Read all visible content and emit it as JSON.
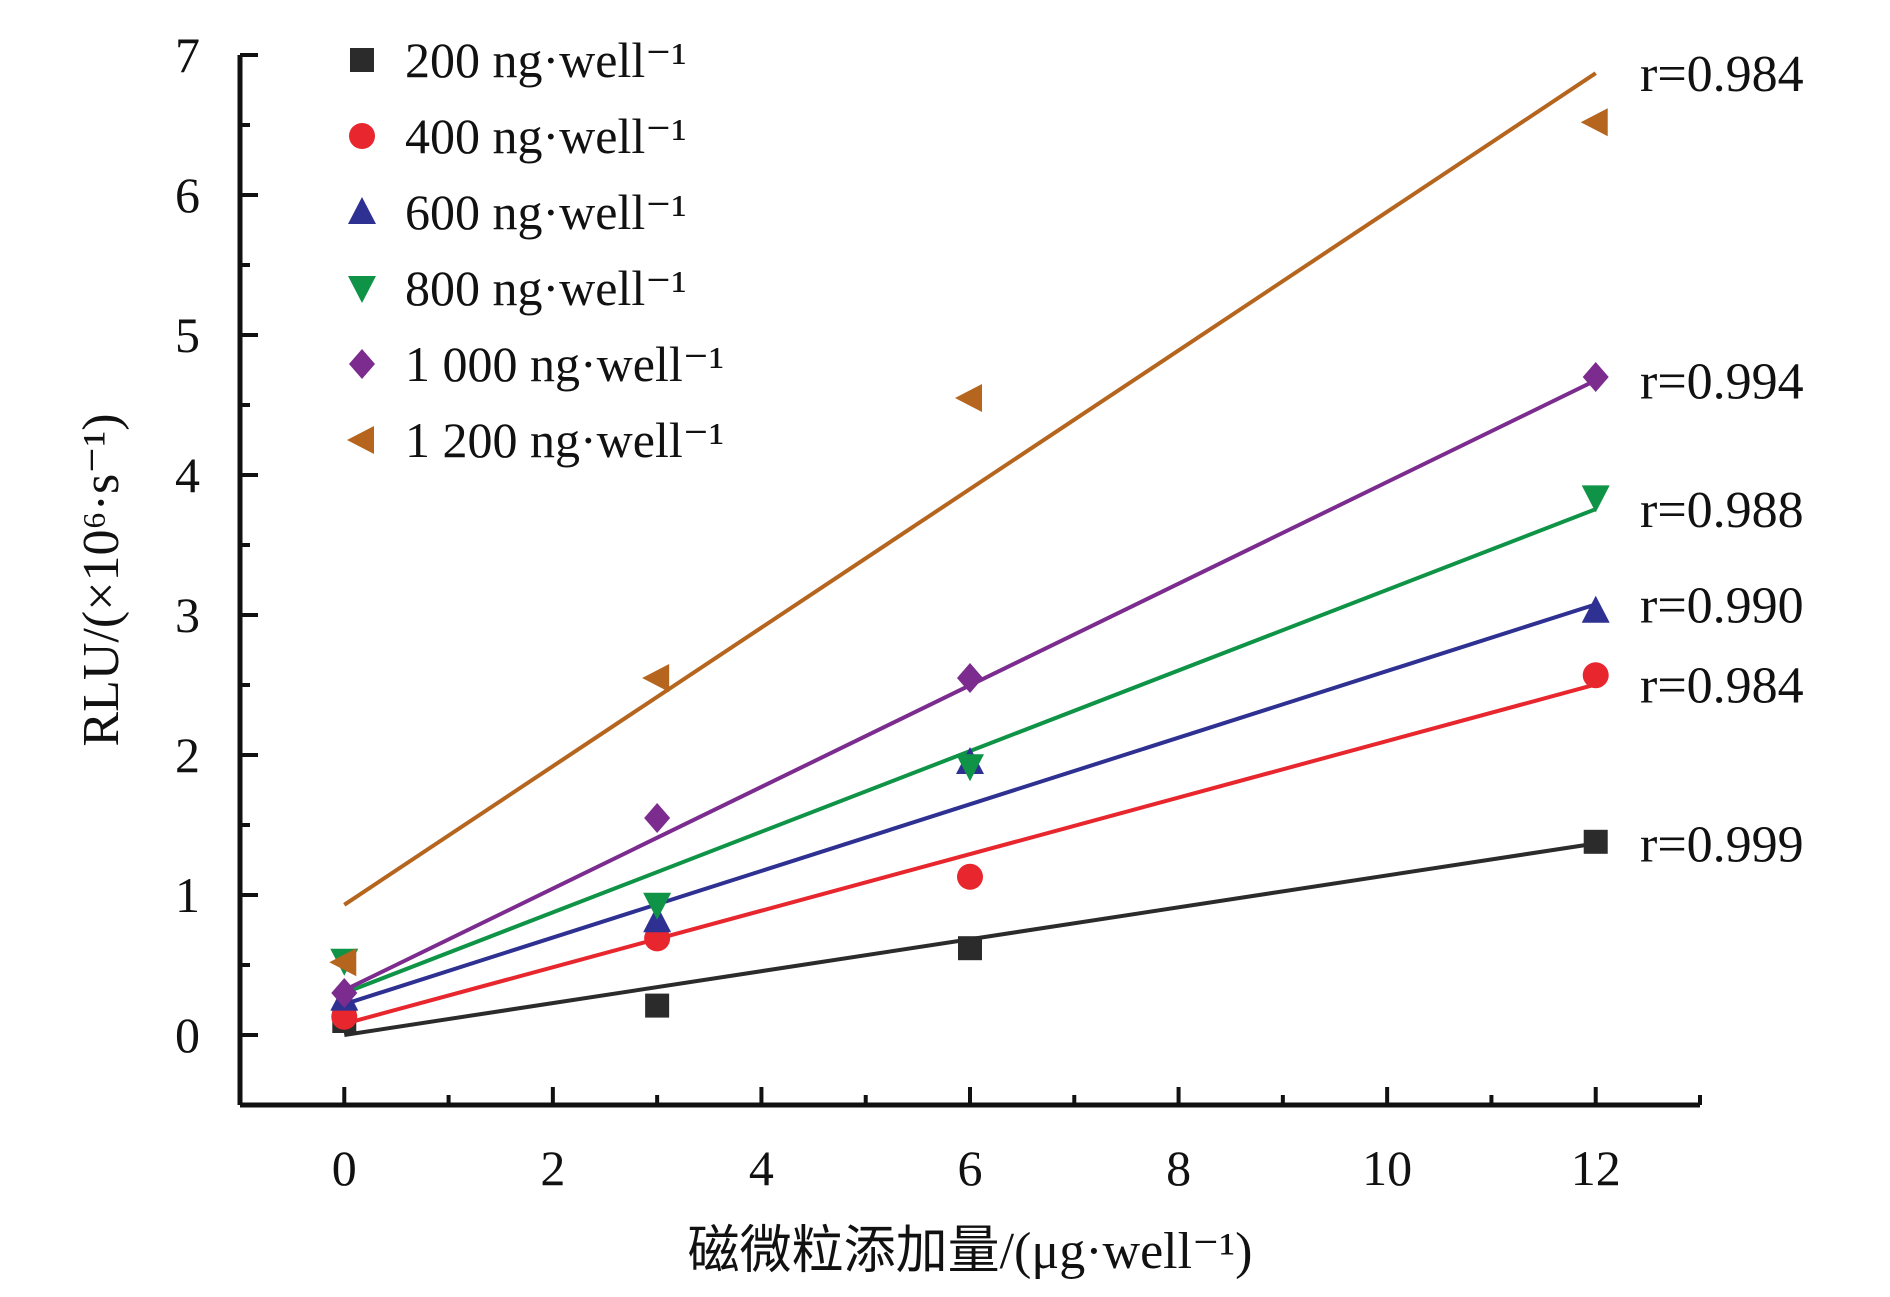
{
  "chart_data": {
    "type": "scatter",
    "title": "",
    "xlabel": "磁微粒添加量/(μg·well⁻¹)",
    "ylabel": "RLU/(×10⁶·s⁻¹)",
    "xlim": [
      -1,
      13
    ],
    "ylim": [
      -0.5,
      7
    ],
    "xticks": [
      0,
      2,
      4,
      6,
      8,
      10,
      12
    ],
    "yticks": [
      0,
      1,
      2,
      3,
      4,
      5,
      6,
      7
    ],
    "legend_position": "top-left",
    "grid": false,
    "x": [
      0,
      3,
      6,
      12
    ],
    "series": [
      {
        "name": "200 ng·well⁻¹",
        "marker": "square",
        "color": "#2b2b2b",
        "values": [
          0.1,
          0.21,
          0.62,
          1.38
        ],
        "fit": [
          0.0,
          0.114
        ],
        "r_label": "r=0.999",
        "r_value": 0.999
      },
      {
        "name": "400 ng·well⁻¹",
        "marker": "circle",
        "color": "#e8262d",
        "values": [
          0.13,
          0.69,
          1.13,
          2.57
        ],
        "fit": [
          0.08,
          0.202
        ],
        "r_label": "r=0.984",
        "r_value": 0.984
      },
      {
        "name": "600 ng·well⁻¹",
        "marker": "triangle-up",
        "color": "#2e3192",
        "values": [
          0.26,
          0.82,
          1.95,
          3.03
        ],
        "fit": [
          0.22,
          0.238
        ],
        "r_label": "r=0.990",
        "r_value": 0.99
      },
      {
        "name": "800 ng·well⁻¹",
        "marker": "triangle-down",
        "color": "#0f9447",
        "values": [
          0.53,
          0.93,
          1.92,
          3.84
        ],
        "fit": [
          0.3,
          0.288
        ],
        "r_label": "r=0.988",
        "r_value": 0.988
      },
      {
        "name": "1 000 ng·well⁻¹",
        "marker": "diamond",
        "color": "#7b2c8e",
        "values": [
          0.3,
          1.55,
          2.55,
          4.7
        ],
        "fit": [
          0.32,
          0.363
        ],
        "r_label": "r=0.994",
        "r_value": 0.994
      },
      {
        "name": "1 200 ng·well⁻¹",
        "marker": "triangle-left",
        "color": "#b5651d",
        "values": [
          0.52,
          2.55,
          4.55,
          6.52
        ],
        "fit": [
          0.93,
          0.495
        ],
        "r_label": "r=0.984",
        "r_value": 0.984
      }
    ]
  }
}
